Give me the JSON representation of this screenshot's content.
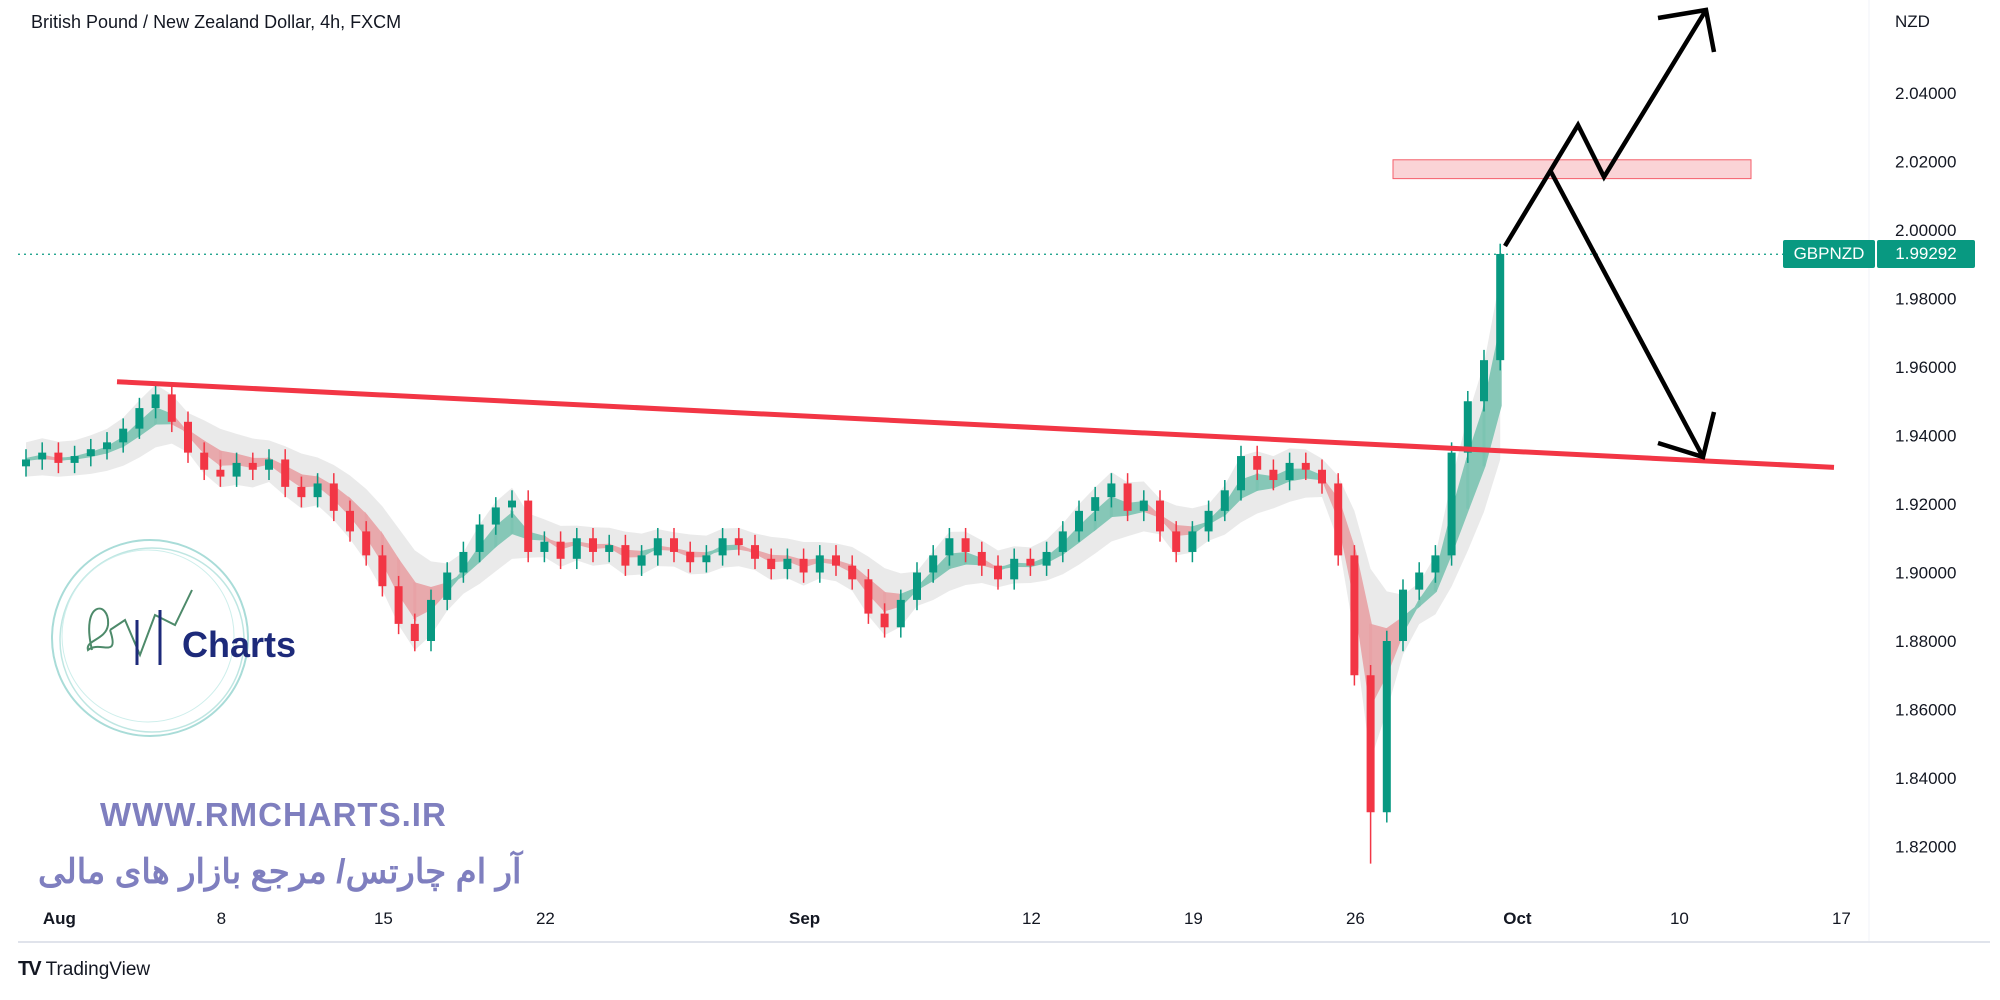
{
  "header": {
    "title": "British Pound / New Zealand Dollar, 4h, FXCM"
  },
  "price_tag": {
    "symbol": "GBPNZD",
    "value": "1.99292"
  },
  "watermark": {
    "logo_text": "RM Charts",
    "website": "WWW.RMCHARTS.IR",
    "tagline": "آر ام چارتس/ مرجع بازار های مالی"
  },
  "footer": {
    "brand": "TradingView",
    "brand_icon": "tradingview-logo-icon"
  },
  "colors": {
    "up": "#089981",
    "down": "#f23645",
    "trendline": "#f23645",
    "zone": "#f9c9cd",
    "projection": "#000000",
    "watermark": "#7f7fbf"
  },
  "chart_data": {
    "type": "candlestick",
    "symbol": "GBPNZD",
    "currency_label": "NZD",
    "last_price": 1.99292,
    "ylim": [
      1.81,
      2.06
    ],
    "y_ticks": [
      "2.04000",
      "2.02000",
      "2.00000",
      "1.98000",
      "1.96000",
      "1.94000",
      "1.92000",
      "1.90000",
      "1.88000",
      "1.86000",
      "1.84000",
      "1.82000"
    ],
    "x_ticks": [
      "Aug",
      "8",
      "15",
      "22",
      "Sep",
      "12",
      "19",
      "26",
      "Oct",
      "10",
      "17"
    ],
    "x_ticks_major": [
      "Aug",
      "Sep",
      "Oct"
    ],
    "closes": [
      1.933,
      1.935,
      1.932,
      1.934,
      1.936,
      1.938,
      1.942,
      1.948,
      1.952,
      1.944,
      1.935,
      1.93,
      1.928,
      1.932,
      1.93,
      1.933,
      1.925,
      1.922,
      1.926,
      1.918,
      1.912,
      1.905,
      1.896,
      1.885,
      1.88,
      1.892,
      1.9,
      1.906,
      1.914,
      1.919,
      1.921,
      1.906,
      1.909,
      1.904,
      1.91,
      1.906,
      1.908,
      1.902,
      1.905,
      1.91,
      1.906,
      1.903,
      1.905,
      1.91,
      1.908,
      1.904,
      1.901,
      1.904,
      1.9,
      1.905,
      1.902,
      1.898,
      1.888,
      1.884,
      1.892,
      1.9,
      1.905,
      1.91,
      1.906,
      1.902,
      1.898,
      1.904,
      1.902,
      1.906,
      1.912,
      1.918,
      1.922,
      1.926,
      1.918,
      1.921,
      1.912,
      1.906,
      1.912,
      1.918,
      1.924,
      1.934,
      1.93,
      1.927,
      1.932,
      1.93,
      1.926,
      1.905,
      1.87,
      1.83,
      1.88,
      1.895,
      1.9,
      1.905,
      1.935,
      1.95,
      1.962,
      1.993
    ],
    "session_low": 1.815,
    "trendline": {
      "from_price": 1.9557,
      "to_price": 1.9307
    },
    "resistance_zone": [
      2.015,
      2.0205
    ]
  }
}
